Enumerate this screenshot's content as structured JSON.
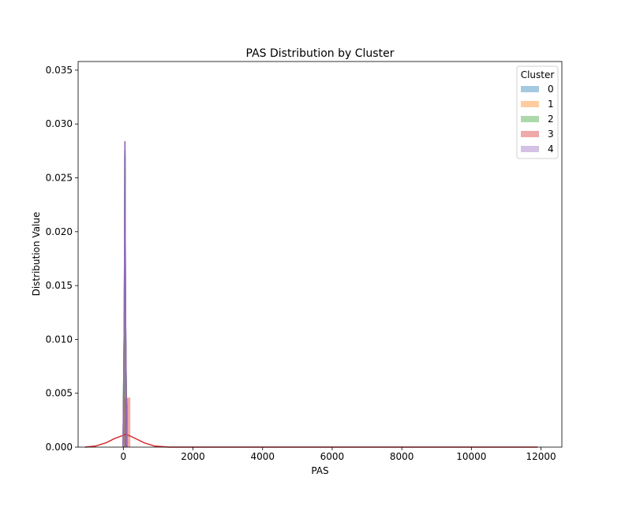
{
  "chart_data": {
    "type": "histogram",
    "title": "PAS Distribution by Cluster",
    "xlabel": "PAS",
    "ylabel": "Distribution Value",
    "xlim": [
      -1300,
      12600
    ],
    "ylim": [
      0,
      0.0358
    ],
    "x_ticks": [
      0,
      2000,
      4000,
      6000,
      8000,
      10000,
      12000
    ],
    "x_tick_labels": [
      "0",
      "2000",
      "4000",
      "6000",
      "8000",
      "10000",
      "12000"
    ],
    "y_ticks": [
      0,
      0.005,
      0.01,
      0.015,
      0.02,
      0.025,
      0.03,
      0.035
    ],
    "y_tick_labels": [
      "0.000",
      "0.005",
      "0.010",
      "0.015",
      "0.020",
      "0.025",
      "0.030",
      "0.035"
    ],
    "grid": false,
    "legend": {
      "title": "Cluster",
      "position": "top-right",
      "entries": [
        "0",
        "1",
        "2",
        "3",
        "4"
      ]
    },
    "series": [
      {
        "name": "0",
        "color": "#1f77b4",
        "bins": [
          {
            "x0": 20,
            "x1": 70,
            "y": 0.027
          },
          {
            "x0": 70,
            "x1": 120,
            "y": 0.0045
          }
        ],
        "kde": [
          [
            -10,
            0
          ],
          [
            25,
            0.012
          ],
          [
            45,
            0.027
          ],
          [
            65,
            0.012
          ],
          [
            100,
            0
          ]
        ]
      },
      {
        "name": "1",
        "color": "#ff7f0e",
        "bins": [
          {
            "x0": 20,
            "x1": 70,
            "y": 0.026
          },
          {
            "x0": 70,
            "x1": 120,
            "y": 0.004
          }
        ],
        "kde": [
          [
            -10,
            0
          ],
          [
            25,
            0.011
          ],
          [
            45,
            0.026
          ],
          [
            65,
            0.011
          ],
          [
            100,
            0
          ]
        ]
      },
      {
        "name": "2",
        "color": "#2ca02c",
        "bins": [
          {
            "x0": 20,
            "x1": 70,
            "y": 0.0275
          },
          {
            "x0": 70,
            "x1": 120,
            "y": 0.004
          }
        ],
        "kde": [
          [
            -10,
            0
          ],
          [
            25,
            0.012
          ],
          [
            45,
            0.0275
          ],
          [
            65,
            0.012
          ],
          [
            100,
            0
          ]
        ]
      },
      {
        "name": "3",
        "color": "#d62728",
        "bins": [
          {
            "x0": 20,
            "x1": 200,
            "y": 0.0046
          }
        ],
        "kde": [
          [
            -1100,
            0
          ],
          [
            -800,
            0.0001
          ],
          [
            -500,
            0.0004
          ],
          [
            -250,
            0.0008
          ],
          [
            0,
            0.0011
          ],
          [
            50,
            0.0012
          ],
          [
            150,
            0.0011
          ],
          [
            350,
            0.0008
          ],
          [
            600,
            0.0004
          ],
          [
            900,
            0.0001
          ],
          [
            1300,
            0
          ],
          [
            11900,
            0
          ]
        ]
      },
      {
        "name": "4",
        "color": "#9467bd",
        "bins": [
          {
            "x0": 20,
            "x1": 70,
            "y": 0.0284
          },
          {
            "x0": 70,
            "x1": 120,
            "y": 0.004
          }
        ],
        "kde": [
          [
            -10,
            0
          ],
          [
            25,
            0.012
          ],
          [
            45,
            0.0284
          ],
          [
            65,
            0.012
          ],
          [
            100,
            0
          ]
        ]
      }
    ]
  }
}
